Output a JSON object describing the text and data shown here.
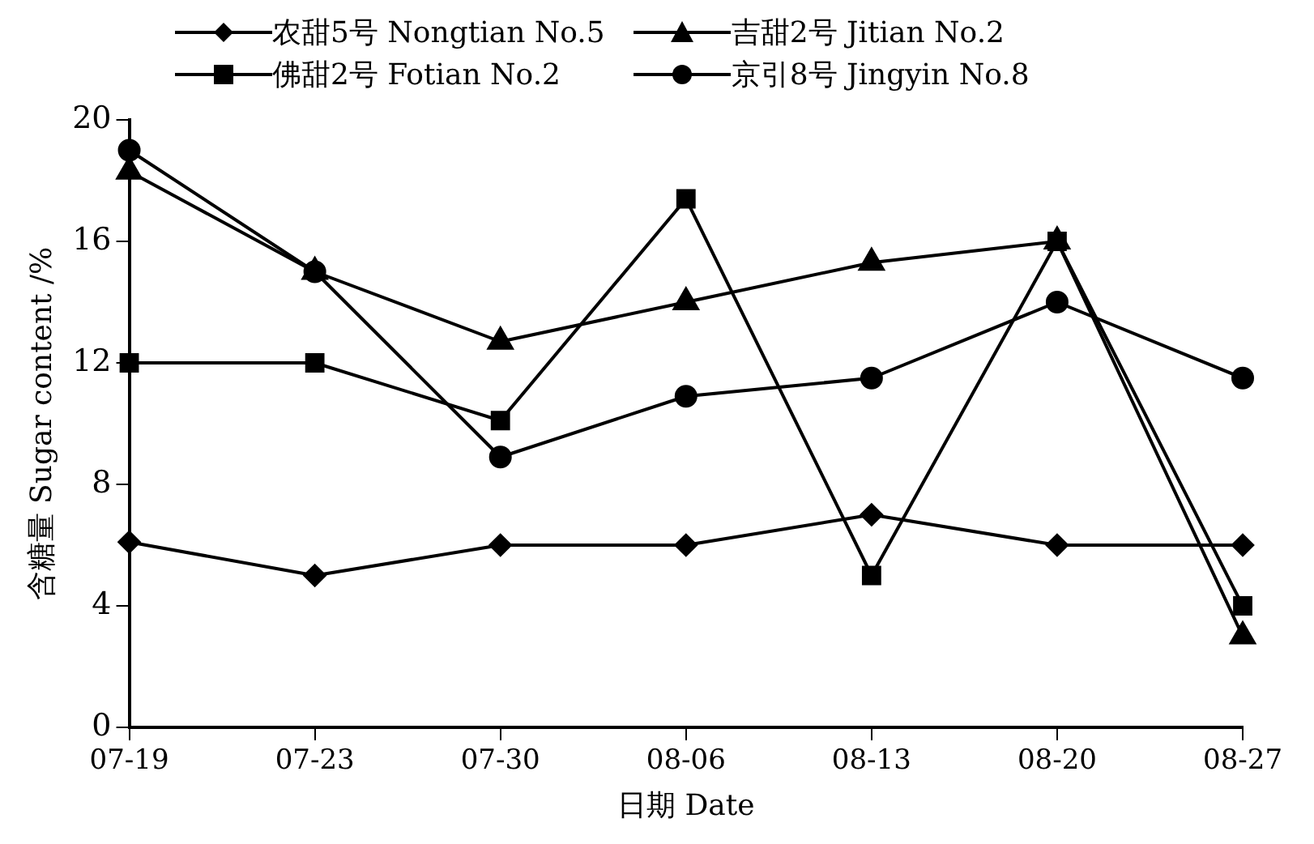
{
  "chart_data": {
    "type": "line",
    "xlabel": "日期 Date",
    "ylabel": "含糖量 Sugar content /%",
    "categories": [
      "07-19",
      "07-23",
      "07-30",
      "08-06",
      "08-13",
      "08-20",
      "08-27"
    ],
    "series": [
      {
        "name": "农甜5号 Nongtian No.5",
        "color": "#000000",
        "marker": "diamond",
        "values": [
          6.1,
          5.0,
          6.0,
          6.0,
          7.0,
          6.0,
          6.0
        ]
      },
      {
        "name": "吉甜2号 Jitian No.2",
        "color": "#000000",
        "marker": "triangle",
        "values": [
          18.3,
          15.0,
          12.7,
          14.0,
          15.3,
          16.0,
          3.0
        ]
      },
      {
        "name": "佛甜2号 Fotian No.2",
        "color": "#000000",
        "marker": "square",
        "values": [
          12.0,
          12.0,
          10.1,
          17.4,
          5.0,
          16.0,
          4.0
        ]
      },
      {
        "name": "京引8号 Jingyin No.8",
        "color": "#000000",
        "marker": "circle",
        "values": [
          19.0,
          15.0,
          8.9,
          10.9,
          11.5,
          14.0,
          11.5
        ]
      }
    ],
    "ylim": [
      0,
      20
    ],
    "yticks": [
      0,
      4,
      8,
      12,
      16,
      20
    ],
    "grid": false,
    "legend": "top",
    "line_style": "solid"
  }
}
